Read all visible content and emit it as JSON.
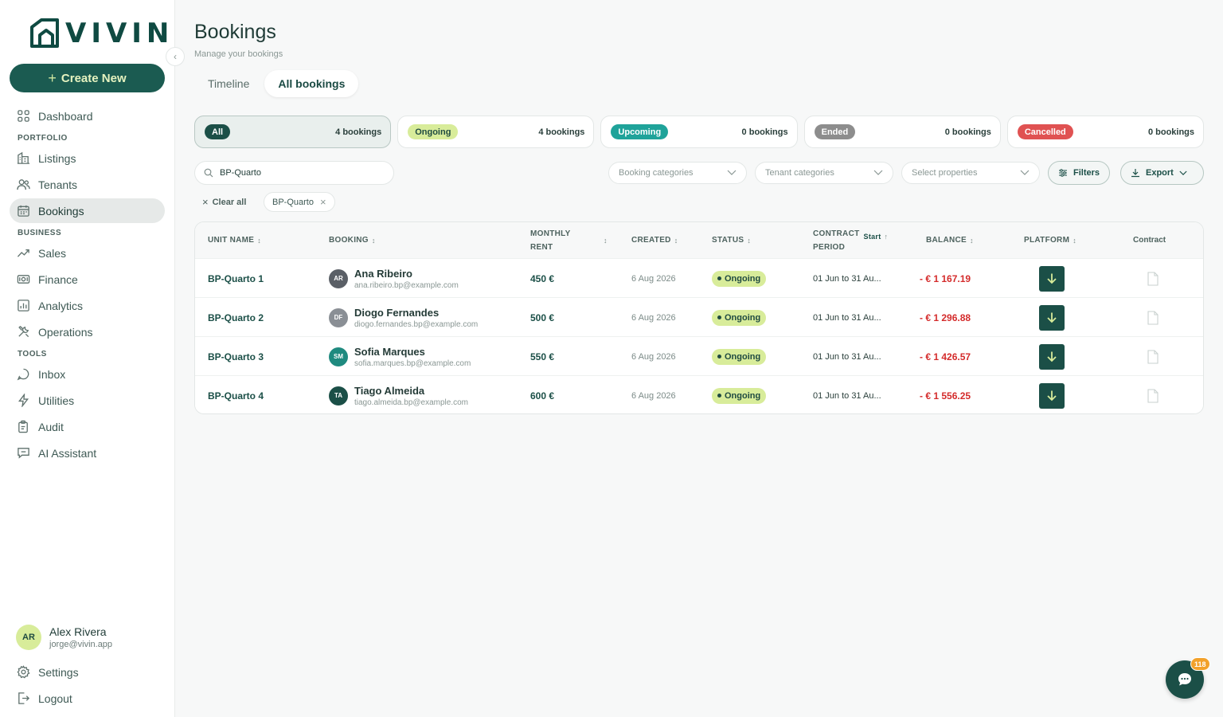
{
  "brand": {
    "name": "VIVIN",
    "color": "#0f4a42",
    "accent": "#d8ec9a"
  },
  "sidebar": {
    "create_label": "Create New",
    "items": [
      {
        "label": "Dashboard",
        "icon": "grid-icon"
      },
      {
        "label": "Listings",
        "icon": "building-icon"
      },
      {
        "label": "Tenants",
        "icon": "users-icon"
      },
      {
        "label": "Bookings",
        "icon": "calendar-icon"
      },
      {
        "label": "Sales",
        "icon": "trend-icon"
      },
      {
        "label": "Finance",
        "icon": "money-icon"
      },
      {
        "label": "Analytics",
        "icon": "bar-chart-icon"
      },
      {
        "label": "Operations",
        "icon": "tools-icon"
      },
      {
        "label": "Inbox",
        "icon": "chat-icon"
      },
      {
        "label": "Utilities",
        "icon": "bolt-icon"
      },
      {
        "label": "Audit",
        "icon": "clipboard-icon"
      },
      {
        "label": "AI Assistant",
        "icon": "ai-chat-icon"
      }
    ],
    "sections": {
      "portfolio": "PORTFOLIO",
      "business": "BUSINESS",
      "tools": "TOOLS"
    },
    "active_item": "Bookings",
    "user": {
      "initials": "AR",
      "name": "Alex Rivera",
      "email": "jorge@vivin.app"
    },
    "settings_label": "Settings",
    "logout_label": "Logout"
  },
  "header": {
    "title": "Bookings",
    "subtitle": "Manage your bookings",
    "tabs": [
      {
        "label": "Timeline",
        "active": false
      },
      {
        "label": "All bookings",
        "active": true
      }
    ]
  },
  "status_cards": [
    {
      "label": "All",
      "count": "4 bookings",
      "bg": "#1b4f47",
      "fg": "#ffffff"
    },
    {
      "label": "Ongoing",
      "count": "4 bookings",
      "bg": "#d8ec9a",
      "fg": "#1f4a41"
    },
    {
      "label": "Upcoming",
      "count": "0 bookings",
      "bg": "#1fa39a",
      "fg": "#ffffff"
    },
    {
      "label": "Ended",
      "count": "0 bookings",
      "bg": "#8d8d8d",
      "fg": "#ffffff"
    },
    {
      "label": "Cancelled",
      "count": "0 bookings",
      "bg": "#e05252",
      "fg": "#ffffff"
    }
  ],
  "filters": {
    "search_value": "BP-Quarto",
    "booking_categories_placeholder": "Booking categories",
    "tenant_categories_placeholder": "Tenant categories",
    "properties_placeholder": "Select properties",
    "filters_label": "Filters",
    "export_label": "Export",
    "clear_all_label": "Clear all",
    "active_chip": "BP-Quarto"
  },
  "table": {
    "headers": {
      "unit_name": "UNIT NAME",
      "booking": "BOOKING",
      "monthly_rent_1": "MONTHLY",
      "monthly_rent_2": "RENT",
      "created": "CREATED",
      "status": "STATUS",
      "contract_1": "CONTRACT",
      "contract_2": "PERIOD",
      "contract_sort": "Start",
      "balance": "BALANCE",
      "platform": "PLATFORM",
      "contract": "Contract"
    },
    "rows": [
      {
        "unit": "BP-Quarto 1",
        "initials": "AR",
        "avatar_color": "#5a5f66",
        "name": "Ana Ribeiro",
        "email": "ana.ribeiro.bp@example.com",
        "rent": "450 €",
        "created": "6 Aug 2026",
        "status": "Ongoing",
        "period": "01 Jun to 31 Au...",
        "balance": "- € 1 167.19"
      },
      {
        "unit": "BP-Quarto 2",
        "initials": "DF",
        "avatar_color": "#8a8f95",
        "name": "Diogo Fernandes",
        "email": "diogo.fernandes.bp@example.com",
        "rent": "500 €",
        "created": "6 Aug 2026",
        "status": "Ongoing",
        "period": "01 Jun to 31 Au...",
        "balance": "- € 1 296.88"
      },
      {
        "unit": "BP-Quarto 3",
        "initials": "SM",
        "avatar_color": "#1f8a7f",
        "name": "Sofia Marques",
        "email": "sofia.marques.bp@example.com",
        "rent": "550 €",
        "created": "6 Aug 2026",
        "status": "Ongoing",
        "period": "01 Jun to 31 Au...",
        "balance": "- € 1 426.57"
      },
      {
        "unit": "BP-Quarto 4",
        "initials": "TA",
        "avatar_color": "#1b4f47",
        "name": "Tiago Almeida",
        "email": "tiago.almeida.bp@example.com",
        "rent": "600 €",
        "created": "6 Aug 2026",
        "status": "Ongoing",
        "period": "01 Jun to 31 Au...",
        "balance": "- € 1 556.25"
      }
    ]
  },
  "chat": {
    "badge": "118"
  }
}
